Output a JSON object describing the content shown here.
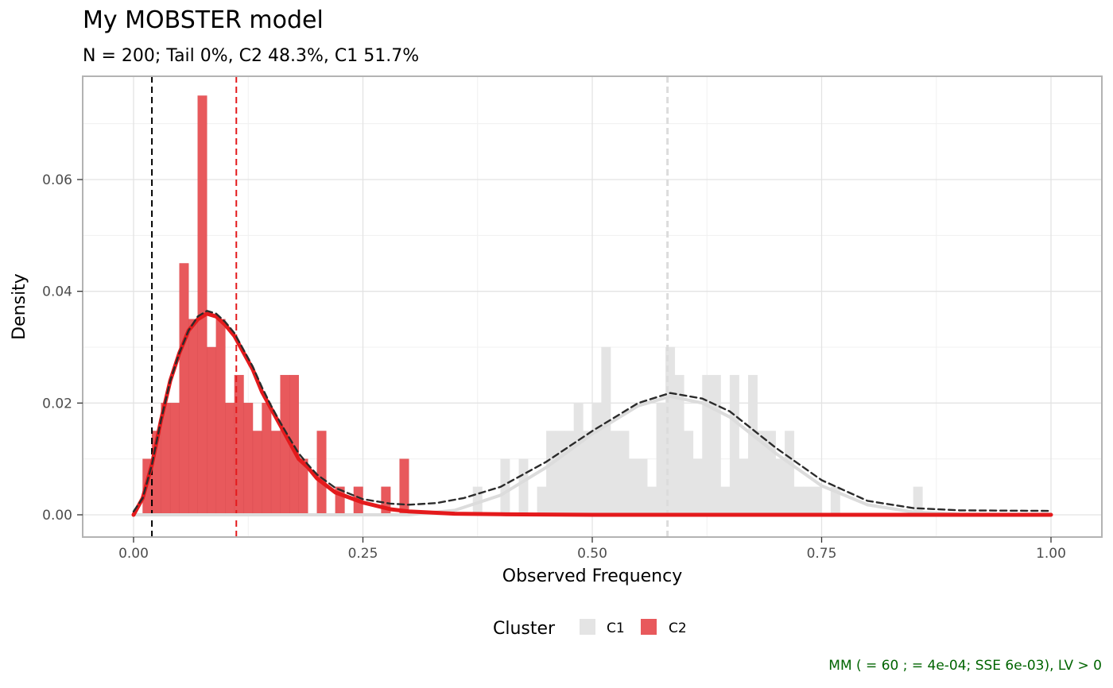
{
  "chart_data": {
    "type": "histogram",
    "title": "My MOBSTER model",
    "subtitle": "N = 200; Tail 0%, C2 48.3%, C1 51.7%",
    "xlabel": "Observed Frequency",
    "ylabel": "Density",
    "xlim": [
      0,
      1.0
    ],
    "ylim": [
      0,
      0.075
    ],
    "x_ticks": [
      0,
      0.25,
      0.5,
      0.75,
      1.0
    ],
    "x_tick_labels": [
      "0.00",
      "0.25",
      "0.50",
      "0.75",
      "1.00"
    ],
    "y_ticks": [
      0,
      0.02,
      0.04,
      0.06
    ],
    "y_tick_labels": [
      "0.00",
      "0.02",
      "0.04",
      "0.06"
    ],
    "grid": true,
    "bin_width": 0.01,
    "legend": {
      "title": "Cluster",
      "position": "bottom",
      "entries": [
        {
          "label": "C1",
          "color": "#e4e4e4"
        },
        {
          "label": "C2",
          "color": "#e8595c"
        }
      ]
    },
    "caption": "MM (  = 60 ;   = 4e-04; SSE 6e-03), LV > 0",
    "series": [
      {
        "name": "C2",
        "color": "#e8595c",
        "bins": [
          {
            "x": 0.015,
            "y": 0.01
          },
          {
            "x": 0.025,
            "y": 0.015
          },
          {
            "x": 0.035,
            "y": 0.02
          },
          {
            "x": 0.045,
            "y": 0.02
          },
          {
            "x": 0.055,
            "y": 0.045
          },
          {
            "x": 0.065,
            "y": 0.035
          },
          {
            "x": 0.075,
            "y": 0.075
          },
          {
            "x": 0.085,
            "y": 0.03
          },
          {
            "x": 0.095,
            "y": 0.035
          },
          {
            "x": 0.105,
            "y": 0.02
          },
          {
            "x": 0.115,
            "y": 0.025
          },
          {
            "x": 0.125,
            "y": 0.02
          },
          {
            "x": 0.135,
            "y": 0.015
          },
          {
            "x": 0.145,
            "y": 0.02
          },
          {
            "x": 0.155,
            "y": 0.015
          },
          {
            "x": 0.165,
            "y": 0.025
          },
          {
            "x": 0.175,
            "y": 0.025
          },
          {
            "x": 0.185,
            "y": 0.01
          },
          {
            "x": 0.205,
            "y": 0.015
          },
          {
            "x": 0.225,
            "y": 0.005
          },
          {
            "x": 0.245,
            "y": 0.005
          },
          {
            "x": 0.275,
            "y": 0.005
          },
          {
            "x": 0.295,
            "y": 0.01
          }
        ]
      },
      {
        "name": "C1",
        "color": "#e4e4e4",
        "bins": [
          {
            "x": 0.375,
            "y": 0.005
          },
          {
            "x": 0.405,
            "y": 0.01
          },
          {
            "x": 0.425,
            "y": 0.01
          },
          {
            "x": 0.445,
            "y": 0.005
          },
          {
            "x": 0.455,
            "y": 0.015
          },
          {
            "x": 0.465,
            "y": 0.015
          },
          {
            "x": 0.475,
            "y": 0.015
          },
          {
            "x": 0.485,
            "y": 0.02
          },
          {
            "x": 0.495,
            "y": 0.015
          },
          {
            "x": 0.505,
            "y": 0.02
          },
          {
            "x": 0.515,
            "y": 0.03
          },
          {
            "x": 0.525,
            "y": 0.015
          },
          {
            "x": 0.535,
            "y": 0.015
          },
          {
            "x": 0.545,
            "y": 0.01
          },
          {
            "x": 0.555,
            "y": 0.01
          },
          {
            "x": 0.565,
            "y": 0.005
          },
          {
            "x": 0.575,
            "y": 0.02
          },
          {
            "x": 0.585,
            "y": 0.03
          },
          {
            "x": 0.595,
            "y": 0.025
          },
          {
            "x": 0.605,
            "y": 0.015
          },
          {
            "x": 0.615,
            "y": 0.01
          },
          {
            "x": 0.625,
            "y": 0.025
          },
          {
            "x": 0.635,
            "y": 0.025
          },
          {
            "x": 0.645,
            "y": 0.005
          },
          {
            "x": 0.655,
            "y": 0.025
          },
          {
            "x": 0.665,
            "y": 0.01
          },
          {
            "x": 0.675,
            "y": 0.025
          },
          {
            "x": 0.685,
            "y": 0.015
          },
          {
            "x": 0.695,
            "y": 0.015
          },
          {
            "x": 0.705,
            "y": 0.01
          },
          {
            "x": 0.715,
            "y": 0.015
          },
          {
            "x": 0.725,
            "y": 0.005
          },
          {
            "x": 0.735,
            "y": 0.005
          },
          {
            "x": 0.745,
            "y": 0.005
          },
          {
            "x": 0.765,
            "y": 0.005
          },
          {
            "x": 0.855,
            "y": 0.005
          }
        ]
      }
    ],
    "density_curves": [
      {
        "cluster": "C2",
        "color": "#e41a1c",
        "style": "solid",
        "points": [
          [
            0,
            0
          ],
          [
            0.01,
            0.003
          ],
          [
            0.02,
            0.009
          ],
          [
            0.03,
            0.017
          ],
          [
            0.04,
            0.024
          ],
          [
            0.05,
            0.029
          ],
          [
            0.06,
            0.033
          ],
          [
            0.07,
            0.035
          ],
          [
            0.08,
            0.036
          ],
          [
            0.09,
            0.0355
          ],
          [
            0.1,
            0.034
          ],
          [
            0.11,
            0.032
          ],
          [
            0.12,
            0.029
          ],
          [
            0.13,
            0.026
          ],
          [
            0.14,
            0.022
          ],
          [
            0.15,
            0.019
          ],
          [
            0.16,
            0.016
          ],
          [
            0.17,
            0.013
          ],
          [
            0.18,
            0.01
          ],
          [
            0.19,
            0.0085
          ],
          [
            0.2,
            0.0065
          ],
          [
            0.22,
            0.004
          ],
          [
            0.25,
            0.0022
          ],
          [
            0.28,
            0.001
          ],
          [
            0.3,
            0.0006
          ],
          [
            0.35,
            0.0002
          ],
          [
            0.4,
            0.0001
          ],
          [
            0.5,
            0
          ],
          [
            1.0,
            0
          ]
        ]
      },
      {
        "cluster": "C1",
        "color": "#dcdcdc",
        "style": "solid",
        "points": [
          [
            0,
            0
          ],
          [
            0.3,
            0
          ],
          [
            0.35,
            0.0008
          ],
          [
            0.4,
            0.0035
          ],
          [
            0.45,
            0.0085
          ],
          [
            0.5,
            0.0145
          ],
          [
            0.55,
            0.0195
          ],
          [
            0.585,
            0.0212
          ],
          [
            0.62,
            0.02
          ],
          [
            0.65,
            0.0175
          ],
          [
            0.7,
            0.011
          ],
          [
            0.75,
            0.0052
          ],
          [
            0.8,
            0.0018
          ],
          [
            0.85,
            0.0005
          ],
          [
            0.9,
            0.0001
          ],
          [
            1.0,
            0
          ]
        ]
      },
      {
        "cluster": "mixture",
        "color": "#2b2b2b",
        "style": "dashed",
        "points": [
          [
            0,
            0.0006
          ],
          [
            0.01,
            0.003
          ],
          [
            0.02,
            0.009
          ],
          [
            0.03,
            0.017
          ],
          [
            0.04,
            0.024
          ],
          [
            0.05,
            0.029
          ],
          [
            0.06,
            0.033
          ],
          [
            0.07,
            0.0355
          ],
          [
            0.08,
            0.0365
          ],
          [
            0.09,
            0.036
          ],
          [
            0.1,
            0.0345
          ],
          [
            0.11,
            0.0325
          ],
          [
            0.12,
            0.0295
          ],
          [
            0.13,
            0.0265
          ],
          [
            0.14,
            0.0228
          ],
          [
            0.15,
            0.0195
          ],
          [
            0.16,
            0.0165
          ],
          [
            0.17,
            0.0137
          ],
          [
            0.18,
            0.011
          ],
          [
            0.19,
            0.009
          ],
          [
            0.2,
            0.0072
          ],
          [
            0.22,
            0.0048
          ],
          [
            0.25,
            0.0028
          ],
          [
            0.28,
            0.002
          ],
          [
            0.3,
            0.0018
          ],
          [
            0.33,
            0.0021
          ],
          [
            0.36,
            0.003
          ],
          [
            0.4,
            0.005
          ],
          [
            0.45,
            0.0095
          ],
          [
            0.5,
            0.015
          ],
          [
            0.55,
            0.02
          ],
          [
            0.585,
            0.0218
          ],
          [
            0.62,
            0.0208
          ],
          [
            0.65,
            0.0185
          ],
          [
            0.7,
            0.012
          ],
          [
            0.75,
            0.0062
          ],
          [
            0.8,
            0.0025
          ],
          [
            0.85,
            0.0012
          ],
          [
            0.9,
            0.0008
          ],
          [
            1.0,
            0.0007
          ]
        ]
      }
    ],
    "vertical_lines": [
      {
        "x": 0.02,
        "color": "#000000",
        "style": "dashed"
      },
      {
        "x": 0.112,
        "color": "#e41a1c",
        "style": "dashed"
      },
      {
        "x": 0.582,
        "color": "#dcdcdc",
        "style": "dashed"
      }
    ]
  }
}
